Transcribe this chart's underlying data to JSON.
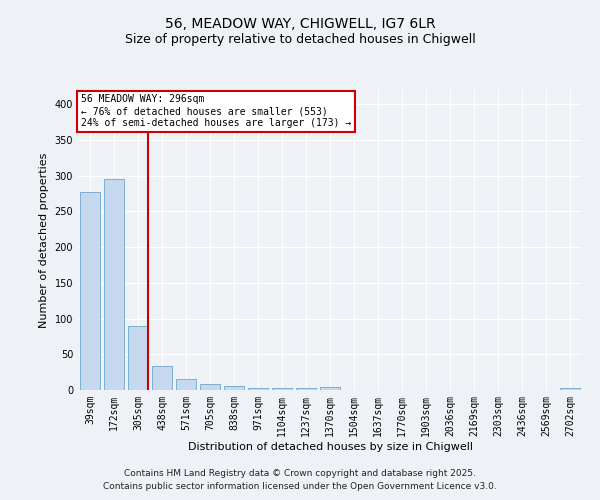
{
  "title1": "56, MEADOW WAY, CHIGWELL, IG7 6LR",
  "title2": "Size of property relative to detached houses in Chigwell",
  "xlabel": "Distribution of detached houses by size in Chigwell",
  "ylabel": "Number of detached properties",
  "categories": [
    "39sqm",
    "172sqm",
    "305sqm",
    "438sqm",
    "571sqm",
    "705sqm",
    "838sqm",
    "971sqm",
    "1104sqm",
    "1237sqm",
    "1370sqm",
    "1504sqm",
    "1637sqm",
    "1770sqm",
    "1903sqm",
    "2036sqm",
    "2169sqm",
    "2303sqm",
    "2436sqm",
    "2569sqm",
    "2702sqm"
  ],
  "values": [
    277,
    295,
    90,
    33,
    16,
    8,
    6,
    3,
    3,
    3,
    4,
    0,
    0,
    0,
    0,
    0,
    0,
    0,
    0,
    0,
    3
  ],
  "bar_color": "#c5d8ed",
  "bar_edge_color": "#7aafd4",
  "vline_color": "#cc0000",
  "annotation_text": "56 MEADOW WAY: 296sqm\n← 76% of detached houses are smaller (553)\n24% of semi-detached houses are larger (173) →",
  "annotation_box_edge": "#cc0000",
  "ylim": [
    0,
    420
  ],
  "yticks": [
    0,
    50,
    100,
    150,
    200,
    250,
    300,
    350,
    400
  ],
  "footer1": "Contains HM Land Registry data © Crown copyright and database right 2025.",
  "footer2": "Contains public sector information licensed under the Open Government Licence v3.0.",
  "background_color": "#eef2f7",
  "plot_bg_color": "#eef2f7",
  "grid_color": "#ffffff"
}
